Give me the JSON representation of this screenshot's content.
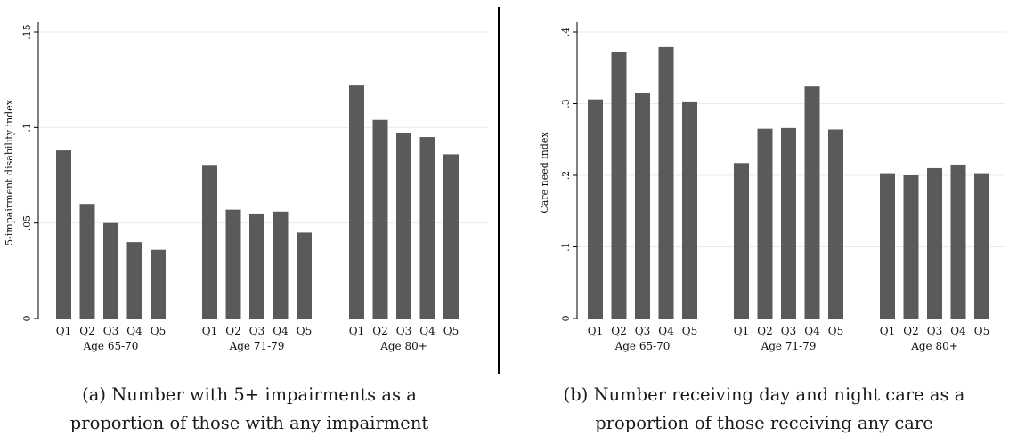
{
  "panels": [
    {
      "ylabel": "5-impairment disability index",
      "yticks": [
        "0",
        ".05",
        ".1",
        ".15"
      ],
      "caption": [
        "(a) Number with 5+ impairments as a",
        "proportion of those with any impairment"
      ]
    },
    {
      "ylabel": "Care need index",
      "yticks": [
        "0",
        ".1",
        ".2",
        ".3",
        ".4"
      ],
      "caption": [
        "(b) Number receiving day and night care as a",
        "proportion of those receiving any care"
      ]
    }
  ],
  "colors": {
    "bar": "#5a5a5a",
    "grid": "#e6ecec",
    "axis": "#000000"
  },
  "chart_data": [
    {
      "type": "bar",
      "ylabel": "5-impairment disability index",
      "ylim": [
        0,
        0.15
      ],
      "yticks": [
        0,
        0.05,
        0.1,
        0.15
      ],
      "grid": true,
      "groups": [
        "Age 65-70",
        "Age 71-79",
        "Age 80+"
      ],
      "categories": [
        "Q1",
        "Q2",
        "Q3",
        "Q4",
        "Q5"
      ],
      "series": [
        {
          "group": "Age 65-70",
          "values": [
            0.088,
            0.06,
            0.05,
            0.04,
            0.036
          ]
        },
        {
          "group": "Age 71-79",
          "values": [
            0.08,
            0.057,
            0.055,
            0.056,
            0.045
          ]
        },
        {
          "group": "Age 80+",
          "values": [
            0.122,
            0.104,
            0.097,
            0.095,
            0.086
          ]
        }
      ]
    },
    {
      "type": "bar",
      "ylabel": "Care need index",
      "ylim": [
        0,
        0.4
      ],
      "yticks": [
        0,
        0.1,
        0.2,
        0.3,
        0.4
      ],
      "grid": true,
      "groups": [
        "Age 65-70",
        "Age 71-79",
        "Age 80+"
      ],
      "categories": [
        "Q1",
        "Q2",
        "Q3",
        "Q4",
        "Q5"
      ],
      "series": [
        {
          "group": "Age 65-70",
          "values": [
            0.306,
            0.372,
            0.315,
            0.379,
            0.302
          ]
        },
        {
          "group": "Age 71-79",
          "values": [
            0.217,
            0.265,
            0.266,
            0.324,
            0.264
          ]
        },
        {
          "group": "Age 80+",
          "values": [
            0.203,
            0.2,
            0.21,
            0.215,
            0.203
          ]
        }
      ]
    }
  ]
}
